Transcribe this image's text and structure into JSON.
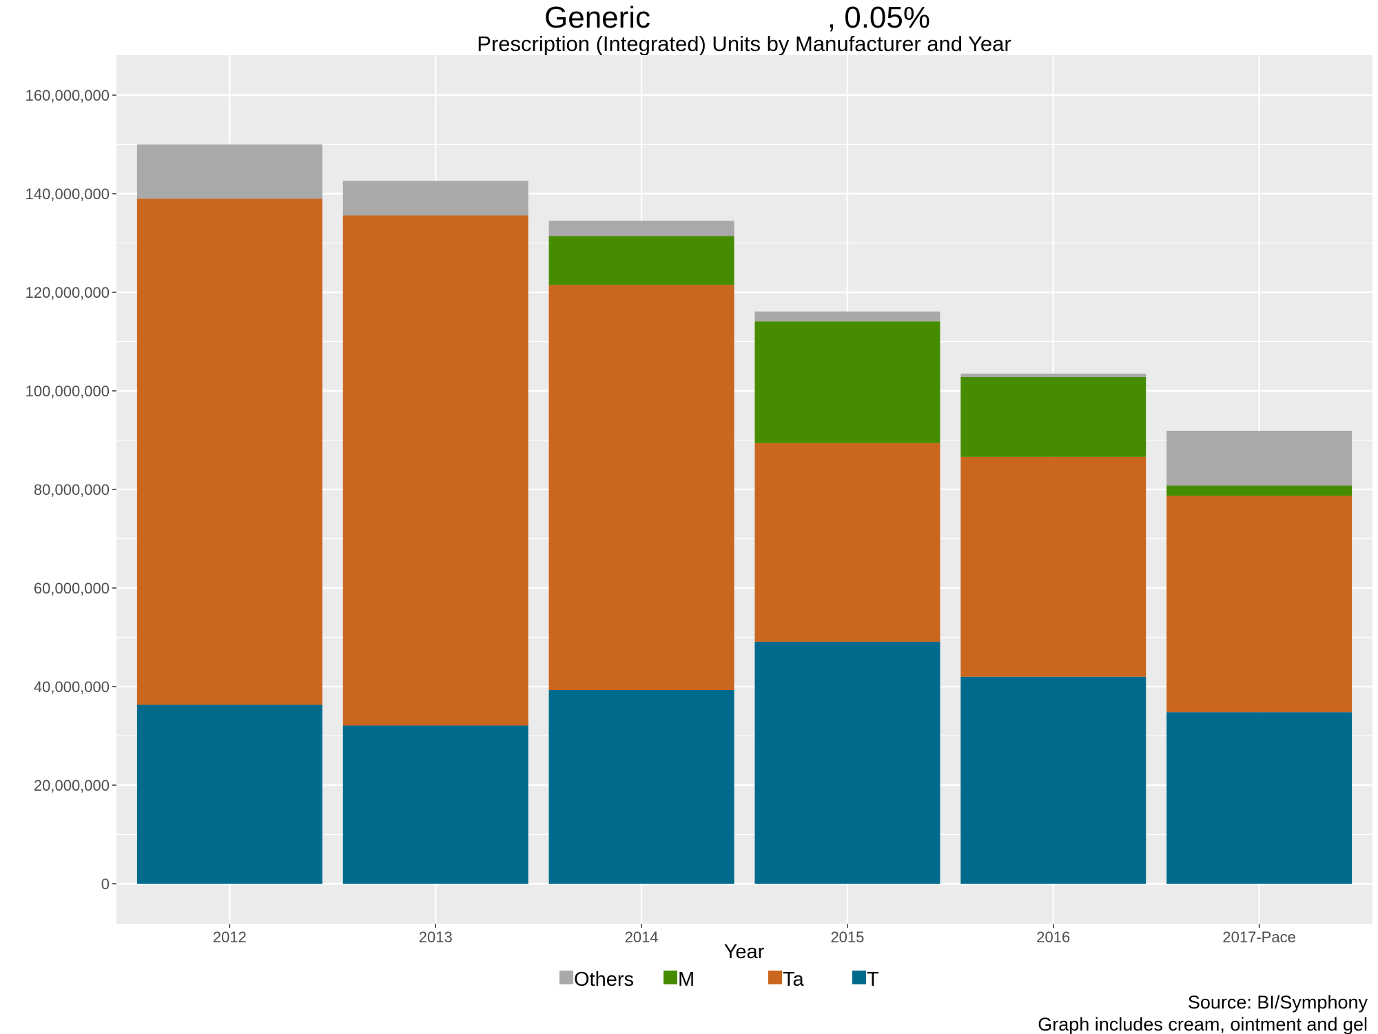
{
  "chart_data": {
    "type": "bar",
    "stacked": true,
    "title": "Generic                     , 0.05%",
    "subtitle": "Prescription (Integrated) Units by Manufacturer and Year",
    "xlabel": "Year",
    "ylabel": "",
    "ylim": [
      0,
      160000000
    ],
    "yticks": [
      0,
      20000000,
      40000000,
      60000000,
      80000000,
      100000000,
      120000000,
      140000000,
      160000000
    ],
    "ytick_labels": [
      "0",
      "20,000,000",
      "40,000,000",
      "60,000,000",
      "80,000,000",
      "100,000,000",
      "120,000,000",
      "140,000,000",
      "160,000,000"
    ],
    "categories": [
      "2012",
      "2013",
      "2014",
      "2015",
      "2016",
      "2017-Pace"
    ],
    "series": [
      {
        "name": "T",
        "color": "#006a8c",
        "values": [
          36300000,
          32100000,
          39300000,
          49100000,
          42000000,
          34800000
        ]
      },
      {
        "name": "Ta",
        "color": "#cb661f",
        "values": [
          102700000,
          103500000,
          82200000,
          40300000,
          44600000,
          43900000
        ]
      },
      {
        "name": "M",
        "color": "#468c00",
        "values": [
          0,
          0,
          9900000,
          24700000,
          16200000,
          2100000
        ]
      },
      {
        "name": "Others",
        "color": "#a9a9a9",
        "values": [
          11000000,
          7000000,
          3100000,
          2000000,
          700000,
          11100000
        ]
      }
    ],
    "legend_order": [
      "Others",
      "M",
      "Ta",
      "T"
    ],
    "legend_position": "bottom",
    "grid": true,
    "caption_lines": [
      "Source: BI/Symphony",
      "Graph includes cream, ointment and gel"
    ]
  }
}
